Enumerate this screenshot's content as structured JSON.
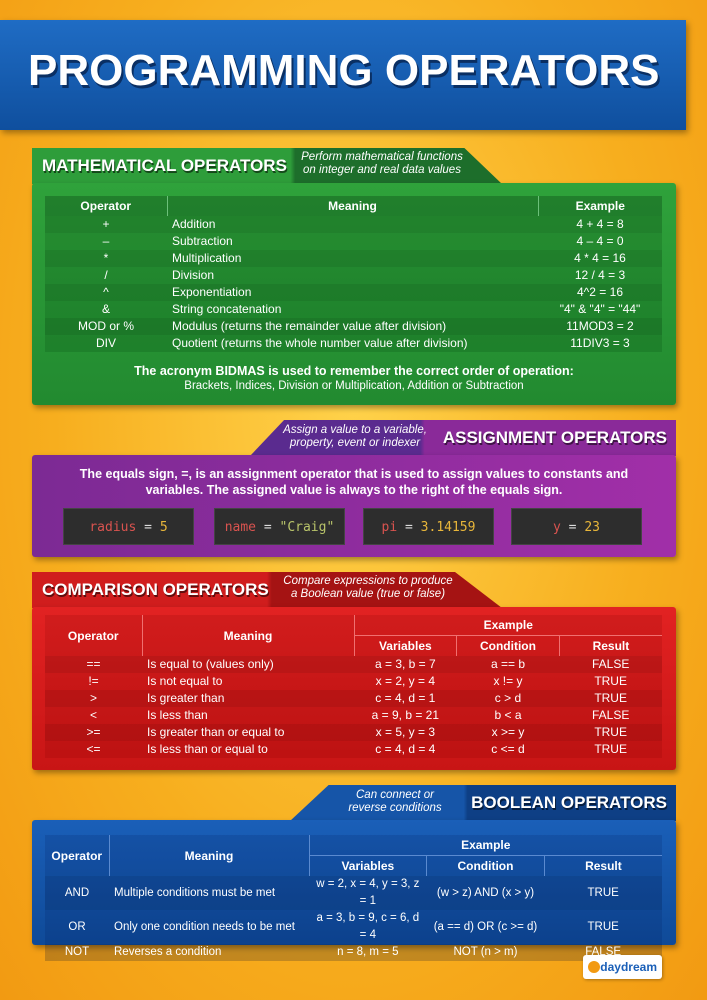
{
  "title": "PROGRAMMING OPERATORS",
  "math": {
    "title": "MATHEMATICAL OPERATORS",
    "subtitle1": "Perform mathematical functions",
    "subtitle2": "on integer and real data values",
    "headers": [
      "Operator",
      "Meaning",
      "Example"
    ],
    "rows": [
      [
        "+",
        "Addition",
        "4 + 4 = 8"
      ],
      [
        "–",
        "Subtraction",
        "4 – 4 = 0"
      ],
      [
        "*",
        "Multiplication",
        "4 * 4 = 16"
      ],
      [
        "/",
        "Division",
        "12 / 4 = 3"
      ],
      [
        "^",
        "Exponentiation",
        "4^2 = 16"
      ],
      [
        "&",
        "String concatenation",
        "\"4\" & \"4\" = \"44\""
      ],
      [
        "MOD or %",
        "Modulus (returns the remainder value after division)",
        "11MOD3 = 2"
      ],
      [
        "DIV",
        "Quotient (returns the whole number value after division)",
        "11DIV3 = 3"
      ]
    ],
    "note_pre": "The acronym ",
    "note_bold": "BIDMAS",
    "note_post": " is used to remember the correct order of operation:",
    "note2": "Brackets, Indices, Division or Multiplication, Addition or Subtraction"
  },
  "assign": {
    "title": "ASSIGNMENT OPERATORS",
    "subtitle1": "Assign a value to a variable,",
    "subtitle2": "property, event or indexer",
    "text": "The equals sign, =, is an assignment operator that is used to assign values to constants and variables. The assigned value is always to the right of the equals sign.",
    "examples": [
      {
        "var": "radius",
        "op": "=",
        "val": "5"
      },
      {
        "var": "name",
        "op": "=",
        "val": "\"Craig\""
      },
      {
        "var": "pi",
        "op": "=",
        "val": "3.14159"
      },
      {
        "var": "y",
        "op": "=",
        "val": "23"
      }
    ]
  },
  "compare": {
    "title": "COMPARISON OPERATORS",
    "subtitle1": "Compare expressions to produce",
    "subtitle2": "a Boolean value (true or false)",
    "headers": {
      "operator": "Operator",
      "meaning": "Meaning",
      "example": "Example",
      "variables": "Variables",
      "condition": "Condition",
      "result": "Result"
    },
    "rows": [
      [
        "==",
        "Is equal to (values only)",
        "a = 3, b = 7",
        "a == b",
        "FALSE"
      ],
      [
        "!=",
        "Is not equal to",
        "x = 2, y = 4",
        "x != y",
        "TRUE"
      ],
      [
        ">",
        "Is greater than",
        "c = 4, d = 1",
        "c > d",
        "TRUE"
      ],
      [
        "<",
        "Is less than",
        "a = 9, b = 21",
        "b < a",
        "FALSE"
      ],
      [
        ">=",
        "Is greater than or equal to",
        "x = 5, y = 3",
        "x >= y",
        "TRUE"
      ],
      [
        "<=",
        "Is less than or equal to",
        "c = 4, d = 4",
        "c <= d",
        "TRUE"
      ]
    ]
  },
  "boolean": {
    "title": "BOOLEAN OPERATORS",
    "subtitle1": "Can connect or",
    "subtitle2": "reverse conditions",
    "headers": {
      "operator": "Operator",
      "meaning": "Meaning",
      "example": "Example",
      "variables": "Variables",
      "condition": "Condition",
      "result": "Result"
    },
    "rows": [
      [
        "AND",
        "Multiple conditions must be met",
        "w = 2, x = 4, y = 3, z = 1",
        "(w > z) AND (x > y)",
        "TRUE"
      ],
      [
        "OR",
        "Only one condition needs to be met",
        "a = 3, b = 9, c = 6, d = 4",
        "(a == d) OR (c >= d)",
        "TRUE"
      ],
      [
        "NOT",
        "Reverses a condition",
        "n = 8, m = 5",
        "NOT (n > m)",
        "FALSE"
      ]
    ]
  },
  "logo": "daydream"
}
